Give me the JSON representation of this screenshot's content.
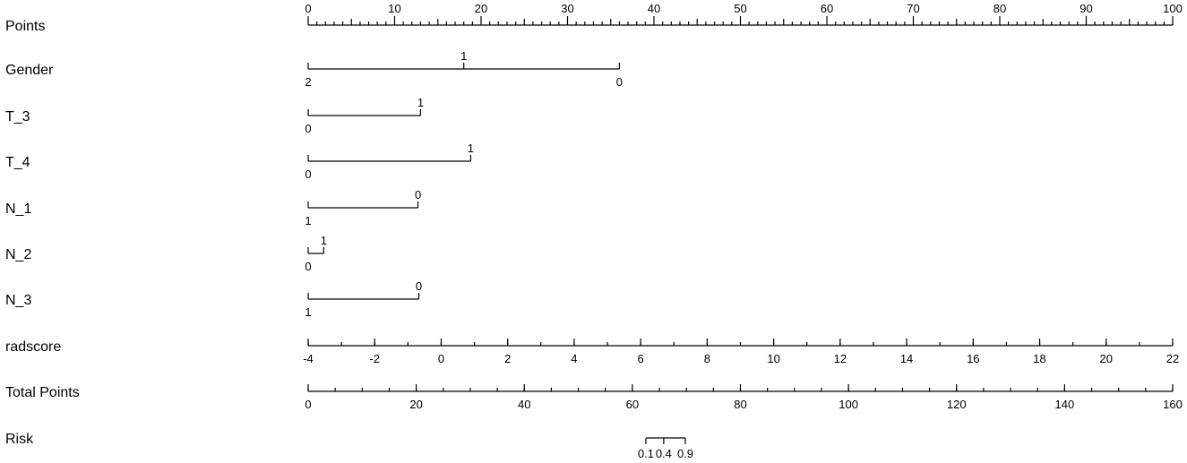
{
  "chart_data": {
    "type": "nomogram",
    "scales": [
      {
        "label": "Points",
        "points_range": [
          0,
          100
        ],
        "ticks": [
          {
            "label": "0",
            "points": 0
          },
          {
            "label": "10",
            "points": 10
          },
          {
            "label": "20",
            "points": 20
          },
          {
            "label": "30",
            "points": 30
          },
          {
            "label": "40",
            "points": 40
          },
          {
            "label": "50",
            "points": 50
          },
          {
            "label": "60",
            "points": 60
          },
          {
            "label": "70",
            "points": 70
          },
          {
            "label": "80",
            "points": 80
          },
          {
            "label": "90",
            "points": 90
          },
          {
            "label": "100",
            "points": 100
          }
        ]
      },
      {
        "label": "Gender",
        "points_range": [
          0,
          36
        ],
        "ticks": [
          {
            "label": "2",
            "points": 0,
            "position": "below"
          },
          {
            "label": "1",
            "points": 18,
            "position": "above"
          },
          {
            "label": "0",
            "points": 36,
            "position": "below"
          }
        ]
      },
      {
        "label": "T_3",
        "points_range": [
          0,
          13
        ],
        "ticks": [
          {
            "label": "0",
            "points": 0,
            "position": "below"
          },
          {
            "label": "1",
            "points": 13,
            "position": "above"
          }
        ]
      },
      {
        "label": "T_4",
        "points_range": [
          0,
          18.8
        ],
        "ticks": [
          {
            "label": "0",
            "points": 0,
            "position": "below"
          },
          {
            "label": "1",
            "points": 18.8,
            "position": "above"
          }
        ]
      },
      {
        "label": "N_1",
        "points_range": [
          0,
          12.7
        ],
        "ticks": [
          {
            "label": "1",
            "points": 0,
            "position": "below"
          },
          {
            "label": "0",
            "points": 12.7,
            "position": "above"
          }
        ]
      },
      {
        "label": "N_2",
        "points_range": [
          0,
          1.8
        ],
        "ticks": [
          {
            "label": "0",
            "points": 0,
            "position": "below"
          },
          {
            "label": "1",
            "points": 1.8,
            "position": "above"
          }
        ]
      },
      {
        "label": "N_3",
        "points_range": [
          0,
          12.8
        ],
        "ticks": [
          {
            "label": "1",
            "points": 0,
            "position": "below"
          },
          {
            "label": "0",
            "points": 12.8,
            "position": "above"
          }
        ]
      },
      {
        "label": "radscore",
        "value_range": [
          -4,
          22
        ],
        "major_ticks": [
          "-4",
          "-2",
          "0",
          "2",
          "4",
          "6",
          "8",
          "10",
          "12",
          "14",
          "16",
          "18",
          "20",
          "22"
        ],
        "minor_step": 1
      },
      {
        "label": "Total Points",
        "value_range": [
          0,
          160
        ],
        "major_ticks": [
          "0",
          "20",
          "40",
          "60",
          "80",
          "100",
          "120",
          "140",
          "160"
        ],
        "minor_step": 5
      },
      {
        "label": "Risk",
        "ticks": [
          {
            "label": "0.1",
            "total_points": 62.5
          },
          {
            "label": "0.4",
            "total_points": 65.8
          },
          {
            "label": "0.9",
            "total_points": 69.8
          }
        ]
      }
    ]
  }
}
